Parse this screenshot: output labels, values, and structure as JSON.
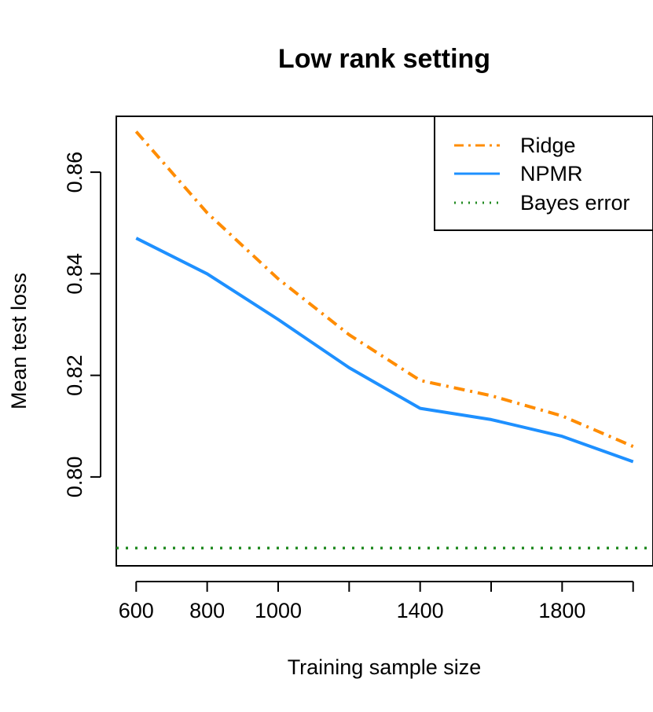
{
  "chart_data": {
    "type": "line",
    "title": "Low rank setting",
    "xlabel": "Training sample size",
    "ylabel": "Mean test loss",
    "x": [
      600,
      800,
      1000,
      1200,
      1400,
      1600,
      1800,
      2000
    ],
    "x_ticks": [
      600,
      800,
      1000,
      1400,
      1800
    ],
    "x_tick_labels": [
      "600",
      "800",
      "1000",
      "1400",
      "1800"
    ],
    "y_ticks": [
      0.8,
      0.82,
      0.84,
      0.86
    ],
    "y_tick_labels": [
      "0.80",
      "0.82",
      "0.84",
      "0.86"
    ],
    "xlim": [
      544,
      2056
    ],
    "ylim": [
      0.7825,
      0.871
    ],
    "grid": false,
    "legend_position": "top-right",
    "series": [
      {
        "name": "Ridge",
        "color": "#FF8C00",
        "line_style": "dashdot",
        "values": [
          0.868,
          0.852,
          0.839,
          0.828,
          0.819,
          0.816,
          0.812,
          0.806
        ]
      },
      {
        "name": "NPMR",
        "color": "#1E90FF",
        "line_style": "solid",
        "values": [
          0.847,
          0.84,
          0.831,
          0.8215,
          0.8135,
          0.8113,
          0.808,
          0.803
        ]
      },
      {
        "name": "Bayes error",
        "color": "#228B22",
        "line_style": "dotted",
        "constant": 0.786
      }
    ]
  }
}
